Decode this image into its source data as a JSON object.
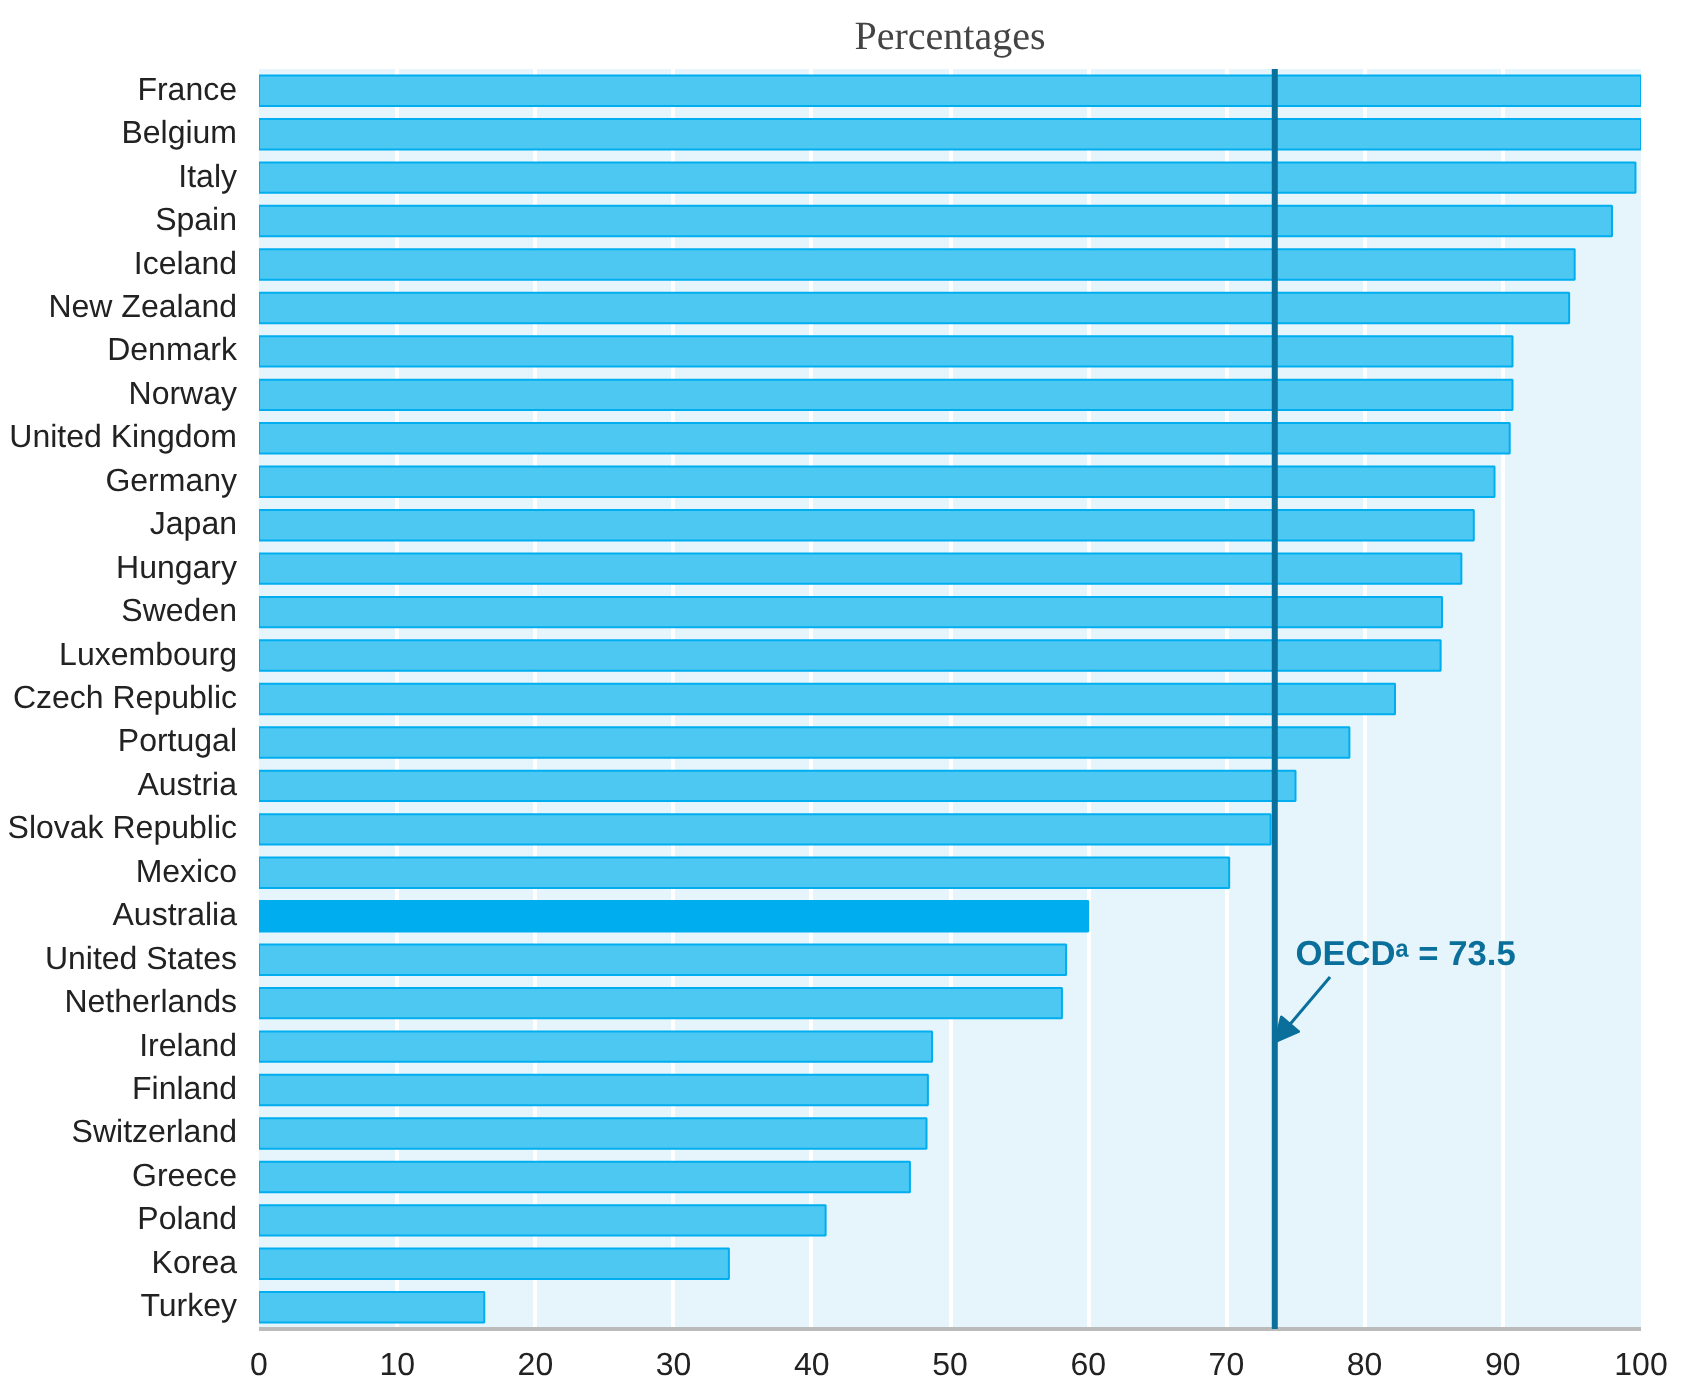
{
  "chart_data": {
    "type": "bar",
    "orientation": "horizontal",
    "title": "Percentages",
    "categories": [
      "France",
      "Belgium",
      "Italy",
      "Spain",
      "Iceland",
      "New Zealand",
      "Denmark",
      "Norway",
      "United Kingdom",
      "Germany",
      "Japan",
      "Hungary",
      "Sweden",
      "Luxembourg",
      "Czech Republic",
      "Portugal",
      "Austria",
      "Slovak Republic",
      "Mexico",
      "Australia",
      "United States",
      "Netherlands",
      "Ireland",
      "Finland",
      "Switzerland",
      "Greece",
      "Poland",
      "Korea",
      "Turkey"
    ],
    "values": [
      100,
      100,
      99.6,
      97.9,
      95.2,
      94.8,
      90.7,
      90.7,
      90.5,
      89.4,
      87.9,
      87,
      85.6,
      85.5,
      82.2,
      78.9,
      75,
      73.2,
      70.2,
      60,
      58.4,
      58.1,
      48.7,
      48.4,
      48.3,
      47.1,
      41,
      34,
      16.3
    ],
    "colors": [
      "#4dc8f2",
      "#4dc8f2",
      "#4dc8f2",
      "#4dc8f2",
      "#4dc8f2",
      "#4dc8f2",
      "#4dc8f2",
      "#4dc8f2",
      "#4dc8f2",
      "#4dc8f2",
      "#4dc8f2",
      "#4dc8f2",
      "#4dc8f2",
      "#4dc8f2",
      "#4dc8f2",
      "#4dc8f2",
      "#4dc8f2",
      "#4dc8f2",
      "#4dc8f2",
      "#00aeef",
      "#4dc8f2",
      "#4dc8f2",
      "#4dc8f2",
      "#4dc8f2",
      "#4dc8f2",
      "#4dc8f2",
      "#4dc8f2",
      "#4dc8f2",
      "#4dc8f2"
    ],
    "xlim": [
      0,
      100
    ],
    "xticks": [
      0,
      10,
      20,
      30,
      40,
      50,
      60,
      70,
      80,
      90,
      100
    ],
    "grid": "x",
    "ref_lines": [
      {
        "axis": "x",
        "value": 73.5,
        "label": "OECDᵃ = 73.5",
        "color": "#0a6f9a"
      }
    ]
  }
}
